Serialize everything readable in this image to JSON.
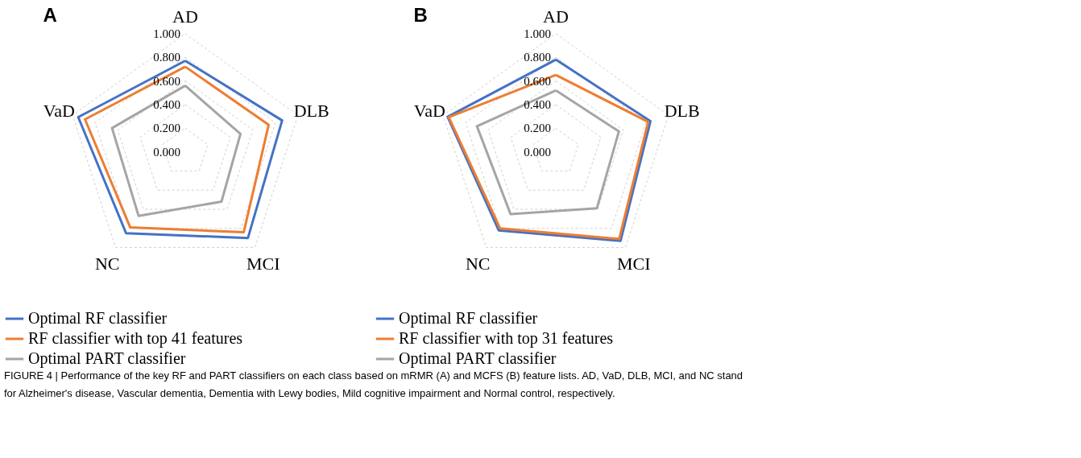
{
  "chart_data": [
    {
      "type": "radar",
      "title": "A",
      "categories": [
        "AD",
        "DLB",
        "MCI",
        "NC",
        "VaD"
      ],
      "series": [
        {
          "name": "Optimal RF classifier",
          "color": "#4472c4",
          "values": [
            0.77,
            0.86,
            0.9,
            0.85,
            0.95
          ]
        },
        {
          "name": "RF classifier with top 41 features",
          "color": "#ed7d31",
          "values": [
            0.72,
            0.74,
            0.84,
            0.79,
            0.89
          ]
        },
        {
          "name": "Optimal PART classifier",
          "color": "#a5a5a5",
          "values": [
            0.56,
            0.49,
            0.52,
            0.67,
            0.65
          ]
        }
      ],
      "ylim": [
        0,
        1
      ],
      "yticks": [
        {
          "value": 0,
          "label": "0.000"
        },
        {
          "value": 0.2,
          "label": "0.200"
        },
        {
          "value": 0.4,
          "label": "0.400"
        },
        {
          "value": 0.6,
          "label": "0.600"
        },
        {
          "value": 0.8,
          "label": "0.800"
        },
        {
          "value": 1,
          "label": "1.000"
        }
      ],
      "grid": true,
      "legend": "bottom"
    },
    {
      "type": "radar",
      "title": "B",
      "categories": [
        "AD",
        "DLB",
        "MCI",
        "NC",
        "VaD"
      ],
      "series": [
        {
          "name": "Optimal RF classifier",
          "color": "#4472c4",
          "values": [
            0.78,
            0.84,
            0.93,
            0.82,
            0.96
          ]
        },
        {
          "name": "RF classifier with top 31 features",
          "color": "#ed7d31",
          "values": [
            0.65,
            0.82,
            0.91,
            0.8,
            0.95
          ]
        },
        {
          "name": "Optimal PART classifier",
          "color": "#a5a5a5",
          "values": [
            0.52,
            0.56,
            0.59,
            0.65,
            0.7
          ]
        }
      ],
      "ylim": [
        0,
        1
      ],
      "yticks": [
        {
          "value": 0,
          "label": "0.000"
        },
        {
          "value": 0.2,
          "label": "0.200"
        },
        {
          "value": 0.4,
          "label": "0.400"
        },
        {
          "value": 0.6,
          "label": "0.600"
        },
        {
          "value": 0.8,
          "label": "0.800"
        },
        {
          "value": 1,
          "label": "1.000"
        }
      ],
      "grid": true,
      "legend": "bottom",
      "annotations": [
        "FIGURE 4 | Performance of the key RF and PART classifiers on each class based on mRMR (A) and MCFS (B) feature lists. AD, VaD, DLB, MCI, and NC stand for Alzheimer's disease, Vascular dementia, Dementia with Lewy bodies, Mild cognitive impairment and Normal control, respectively."
      ]
    }
  ]
}
